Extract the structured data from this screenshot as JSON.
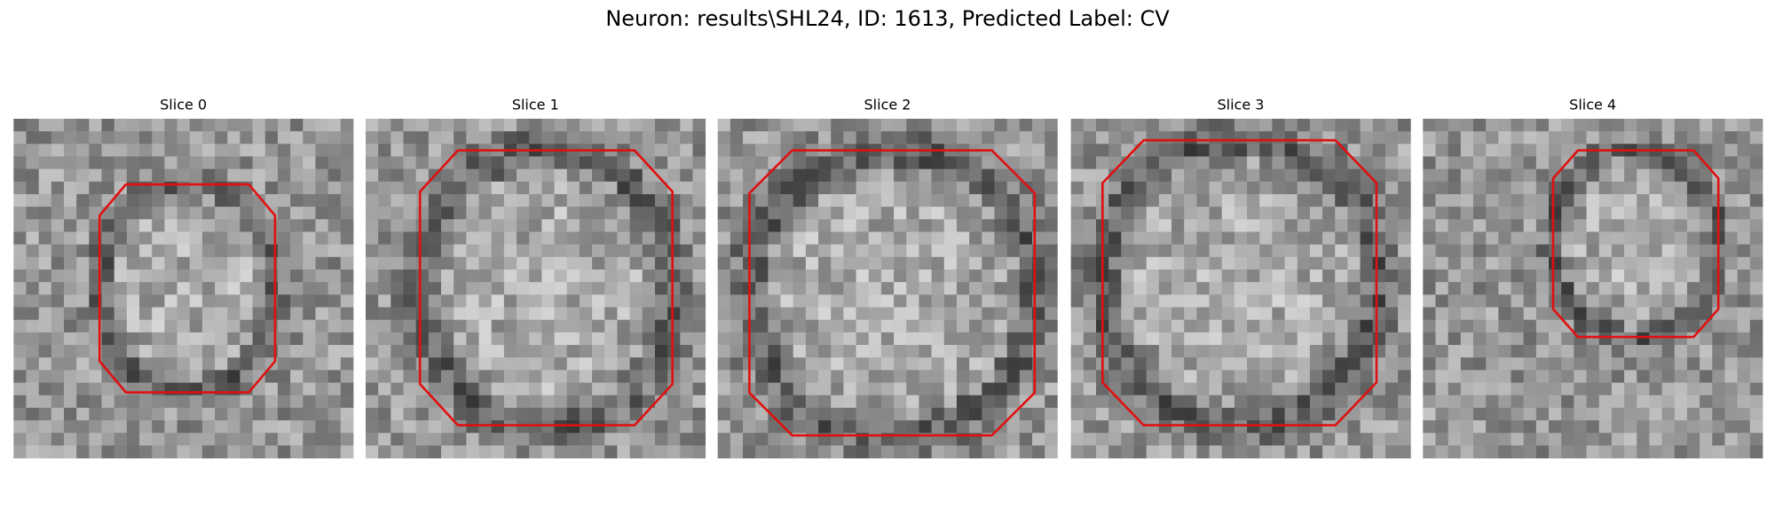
{
  "title": "Neuron: results\\SHL24, ID: 1613, Predicted Label: CV",
  "panels": [
    {
      "title": "Slice 0"
    },
    {
      "title": "Slice 1"
    },
    {
      "title": "Slice 2"
    },
    {
      "title": "Slice 3"
    },
    {
      "title": "Slice 4"
    }
  ]
}
